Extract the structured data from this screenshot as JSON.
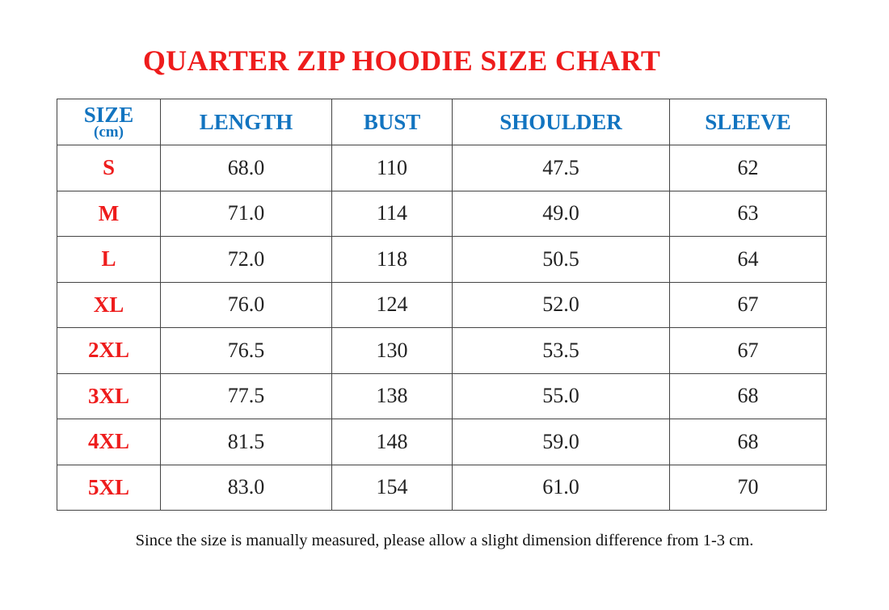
{
  "title": "QUARTER ZIP HOODIE SIZE CHART",
  "colors": {
    "title": "#ee1c1c",
    "header": "#1274c0",
    "size_label": "#ee1c1c"
  },
  "table": {
    "headers": {
      "size": "SIZE",
      "unit": "(cm)",
      "length": "LENGTH",
      "bust": "BUST",
      "shoulder": "SHOULDER",
      "sleeve": "SLEEVE"
    },
    "rows": [
      {
        "size": "S",
        "length": "68.0",
        "bust": "110",
        "shoulder": "47.5",
        "sleeve": "62"
      },
      {
        "size": "M",
        "length": "71.0",
        "bust": "114",
        "shoulder": "49.0",
        "sleeve": "63"
      },
      {
        "size": "L",
        "length": "72.0",
        "bust": "118",
        "shoulder": "50.5",
        "sleeve": "64"
      },
      {
        "size": "XL",
        "length": "76.0",
        "bust": "124",
        "shoulder": "52.0",
        "sleeve": "67"
      },
      {
        "size": "2XL",
        "length": "76.5",
        "bust": "130",
        "shoulder": "53.5",
        "sleeve": "67"
      },
      {
        "size": "3XL",
        "length": "77.5",
        "bust": "138",
        "shoulder": "55.0",
        "sleeve": "68"
      },
      {
        "size": "4XL",
        "length": "81.5",
        "bust": "148",
        "shoulder": "59.0",
        "sleeve": "68"
      },
      {
        "size": "5XL",
        "length": "83.0",
        "bust": "154",
        "shoulder": "61.0",
        "sleeve": "70"
      }
    ]
  },
  "note": "Since the size is manually measured, please allow a slight dimension difference from 1-3 cm."
}
